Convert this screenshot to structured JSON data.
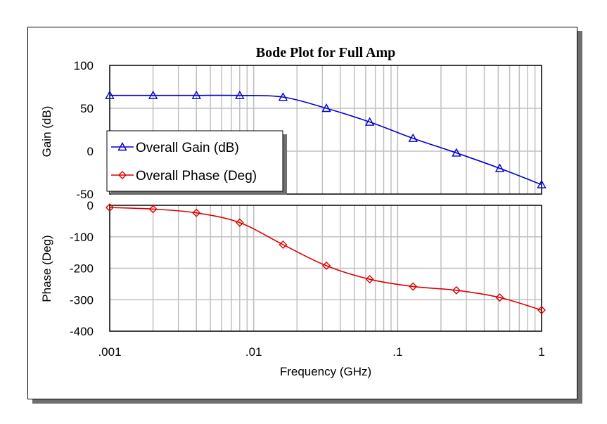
{
  "chart_data": {
    "type": "line",
    "title": "Bode Plot for Full Amp",
    "xlabel": "Frequency (GHz)",
    "xscale": "log",
    "xlim": [
      0.001,
      1
    ],
    "x_tick_labels": [
      ".001",
      ".01",
      ".1",
      "1"
    ],
    "x_tick_values": [
      0.001,
      0.01,
      0.1,
      1
    ],
    "grid": true,
    "legend_placement": "left, overlapping both panels",
    "panels": [
      {
        "name": "gain",
        "ylabel": "Gain (dB)",
        "ylim": [
          -50,
          100
        ],
        "y_ticks": [
          100,
          50,
          0,
          -50
        ],
        "series": [
          {
            "name": "Overall Gain (dB)",
            "color": "#0000cc",
            "marker": "triangle",
            "x": [
              0.001,
              0.002,
              0.004,
              0.008,
              0.016,
              0.032,
              0.064,
              0.128,
              0.256,
              0.512,
              1.0
            ],
            "y": [
              65,
              65,
              65,
              65,
              63,
              50,
              34,
              15,
              -2,
              -20,
              -39
            ]
          }
        ]
      },
      {
        "name": "phase",
        "ylabel": "Phase (Deg)",
        "ylim": [
          -400,
          0
        ],
        "y_ticks": [
          0,
          -100,
          -200,
          -300,
          -400
        ],
        "series": [
          {
            "name": "Overall Phase (Deg)",
            "color": "#dd0000",
            "marker": "diamond",
            "x": [
              0.001,
              0.002,
              0.004,
              0.008,
              0.016,
              0.032,
              0.064,
              0.128,
              0.256,
              0.512,
              1.0
            ],
            "y": [
              -7,
              -12,
              -24,
              -55,
              -125,
              -192,
              -235,
              -258,
              -270,
              -293,
              -333
            ]
          }
        ]
      }
    ]
  }
}
